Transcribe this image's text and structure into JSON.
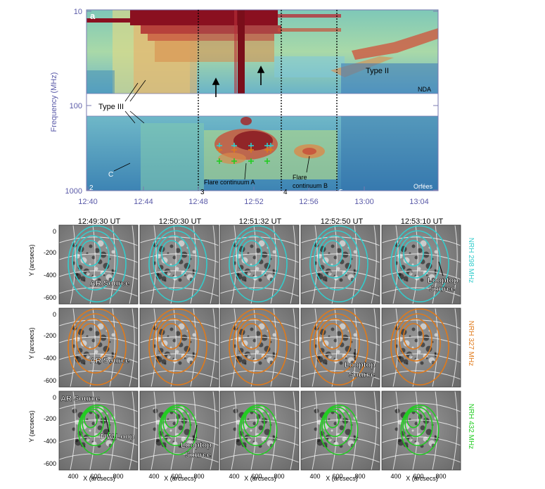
{
  "panel_a": {
    "label": "a",
    "y_axis_label": "Frequency (MHz)",
    "y_ticks": [
      "10",
      "100",
      "1000"
    ],
    "x_ticks": [
      "12:40",
      "12:44",
      "12:48",
      "12:52",
      "12:56",
      "13:00",
      "13:04"
    ],
    "instrument_top": "NDA",
    "instrument_bottom": "Orfées",
    "annotations": {
      "type_iii": "Type III",
      "type_ii": "Type II",
      "c": "C",
      "flare_continuum_a": "Flare continuum A",
      "flare_continuum_b": "Flare continuum B"
    },
    "markers": [
      "2",
      "3",
      "4",
      "5"
    ]
  },
  "grid": {
    "times": [
      "12:49:30 UT",
      "12:50:30 UT",
      "12:51:32 UT",
      "12:52:50 UT",
      "12:53:10 UT"
    ],
    "y_axis_label": "Y (arcsecs)",
    "x_axis_label": "X (arcsecs)",
    "y_ticks": [
      "0",
      "-200",
      "-400",
      "-600"
    ],
    "x_ticks": [
      "400",
      "600",
      "800"
    ],
    "rows": [
      {
        "label": "NRH 298 MHz",
        "color": "#33cccc"
      },
      {
        "label": "NRH 327 MHz",
        "color": "#e07a1a"
      },
      {
        "label": "NRH 432 MHz",
        "color": "#22cc22"
      }
    ],
    "annotations": {
      "r1c1": "AR Source",
      "r1c5a": "Looptop",
      "r1c5b": "Source",
      "r2c1": "AR Source",
      "r2c4a": "Looptop",
      "r2c4b": "Source",
      "r3c1a": "AR Source",
      "r3c1b": "NW Loop",
      "r3c2a": "Looptop",
      "r3c2b": "Source"
    }
  }
}
